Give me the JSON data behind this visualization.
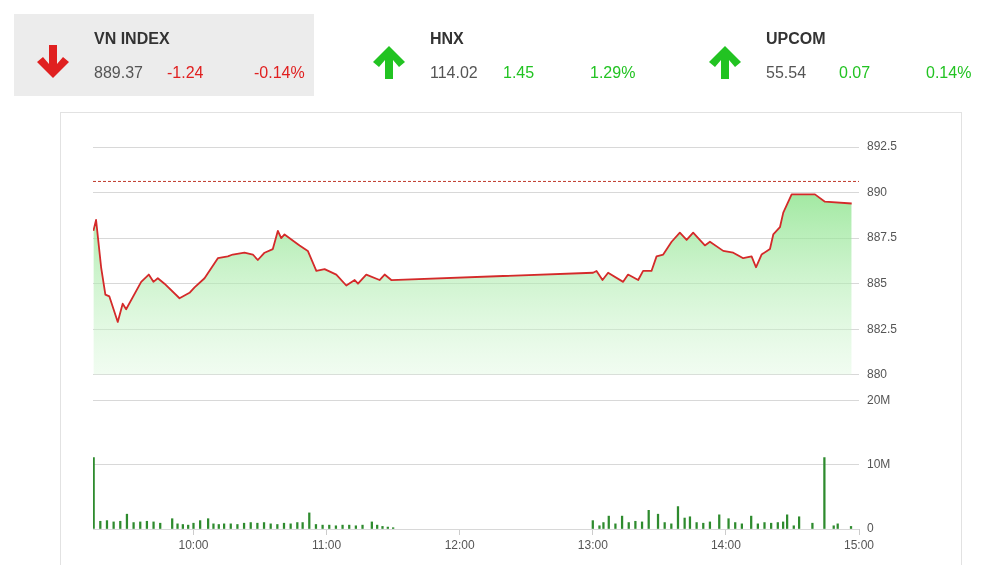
{
  "chart_data": [
    {
      "type": "other",
      "annotations": [
        "VN INDEX",
        "889.37",
        "-1.24",
        "-0.14%",
        "HNX",
        "114.02",
        "1.45",
        "1.29%",
        "UPCOM",
        "55.54",
        "0.07",
        "0.14%"
      ]
    },
    {
      "type": "area",
      "xlim": [
        9.245,
        15
      ],
      "ylim": [
        880,
        892.5
      ],
      "yticks": [
        880,
        882.5,
        885,
        887.5,
        890,
        892.5
      ],
      "grid": "y",
      "tick_labels": "y",
      "marker": "none",
      "ref_lines": [
        {
          "axis": "y",
          "value": 890.61,
          "color": "#c0392b",
          "line_style": "dashed"
        }
      ],
      "series": [
        {
          "color": "#d42a2a",
          "x": [
            9.248,
            9.268,
            9.306,
            9.338,
            9.368,
            9.431,
            9.468,
            9.494,
            9.607,
            9.664,
            9.699,
            9.732,
            9.782,
            9.895,
            9.97,
            10.008,
            10.083,
            10.183,
            10.258,
            10.295,
            10.383,
            10.446,
            10.483,
            10.534,
            10.596,
            10.634,
            10.659,
            10.684,
            10.797,
            10.859,
            10.923,
            10.985,
            11.073,
            11.148,
            11.211,
            11.236,
            11.298,
            11.398,
            11.436,
            11.486,
            13.002,
            13.028,
            13.073,
            13.115,
            13.228,
            13.265,
            13.341,
            13.378,
            13.441,
            13.479,
            13.529,
            13.592,
            13.654,
            13.705,
            13.754,
            13.842,
            13.88,
            13.98,
            14.055,
            14.13,
            14.193,
            14.226,
            14.268,
            14.331,
            14.356,
            14.406,
            14.431,
            14.494,
            14.669,
            14.744,
            14.945
          ],
          "values": [
            887.9,
            888.5,
            885.9,
            884.4,
            884.3,
            882.9,
            883.9,
            883.6,
            885.1,
            885.5,
            885.1,
            885.3,
            885.0,
            884.2,
            884.5,
            884.8,
            885.3,
            886.4,
            886.5,
            886.6,
            886.7,
            886.6,
            886.3,
            886.7,
            886.9,
            887.9,
            887.5,
            887.7,
            887.1,
            886.8,
            885.7,
            885.8,
            885.5,
            884.9,
            885.2,
            885.0,
            885.5,
            885.2,
            885.5,
            885.2,
            885.6,
            885.7,
            885.2,
            885.6,
            885.1,
            885.5,
            885.2,
            885.7,
            885.7,
            886.5,
            886.6,
            887.3,
            887.8,
            887.4,
            887.8,
            887.1,
            887.3,
            886.8,
            886.7,
            886.4,
            886.5,
            885.9,
            886.6,
            886.9,
            887.7,
            888.1,
            888.9,
            889.9,
            889.9,
            889.5,
            889.4
          ]
        }
      ]
    },
    {
      "type": "bar",
      "xlim": [
        9.245,
        15
      ],
      "xticks": [
        {
          "value": 10,
          "label": "10:00"
        },
        {
          "value": 11,
          "label": "11:00"
        },
        {
          "value": 12,
          "label": "12:00"
        },
        {
          "value": 13,
          "label": "13:00"
        },
        {
          "value": 14,
          "label": "14:00"
        },
        {
          "value": 15,
          "label": "15:00"
        }
      ],
      "ylim": [
        0,
        20
      ],
      "yticks": [
        0,
        {
          "value": 10,
          "label": "10M"
        },
        {
          "value": 20,
          "label": "20M"
        }
      ],
      "grid": "y",
      "series": [
        {
          "color": "#2e8b2e",
          "x": [
            9.25,
            9.3,
            9.35,
            9.4,
            9.45,
            9.5,
            9.55,
            9.6,
            9.65,
            9.7,
            9.75,
            9.84,
            9.88,
            9.92,
            9.96,
            10.0,
            10.05,
            10.11,
            10.15,
            10.19,
            10.23,
            10.28,
            10.33,
            10.38,
            10.43,
            10.48,
            10.53,
            10.58,
            10.63,
            10.68,
            10.73,
            10.78,
            10.82,
            10.87,
            10.92,
            10.97,
            11.02,
            11.07,
            11.12,
            11.17,
            11.22,
            11.27,
            11.34,
            11.38,
            11.42,
            11.46,
            11.5,
            13.0,
            13.05,
            13.08,
            13.12,
            13.17,
            13.22,
            13.27,
            13.32,
            13.37,
            13.42,
            13.49,
            13.54,
            13.59,
            13.64,
            13.69,
            13.73,
            13.78,
            13.83,
            13.88,
            13.95,
            14.02,
            14.07,
            14.12,
            14.19,
            14.24,
            14.29,
            14.34,
            14.39,
            14.43,
            14.46,
            14.51,
            14.55,
            14.65,
            14.74,
            14.81,
            14.84,
            14.94
          ],
          "values": [
            11.1,
            1.2,
            1.3,
            1.1,
            1.2,
            2.3,
            1.0,
            1.1,
            1.2,
            1.1,
            0.9,
            1.6,
            0.8,
            0.7,
            0.6,
            0.9,
            1.3,
            1.6,
            0.8,
            0.7,
            0.8,
            0.8,
            0.7,
            0.9,
            1.0,
            0.9,
            1.0,
            0.8,
            0.7,
            0.9,
            0.8,
            1.0,
            1.0,
            2.5,
            0.7,
            0.6,
            0.6,
            0.5,
            0.6,
            0.6,
            0.5,
            0.6,
            1.1,
            0.6,
            0.4,
            0.3,
            0.2,
            1.3,
            0.5,
            1.0,
            2.0,
            0.8,
            2.0,
            1.0,
            1.2,
            1.1,
            2.9,
            2.3,
            1.0,
            0.8,
            3.5,
            1.7,
            1.9,
            1.0,
            0.9,
            1.1,
            2.2,
            1.6,
            1.0,
            0.8,
            2.0,
            0.8,
            1.0,
            0.9,
            1.0,
            1.1,
            2.2,
            0.5,
            1.9,
            0.9,
            11.1,
            0.5,
            0.8,
            0.4
          ]
        }
      ]
    }
  ]
}
